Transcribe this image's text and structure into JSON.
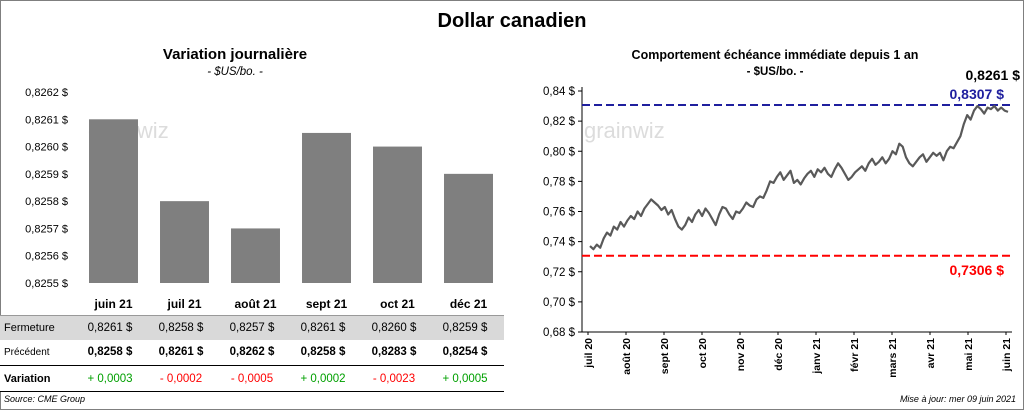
{
  "title": "Dollar canadien",
  "left_chart": {
    "title": "Variation  journalière",
    "subtitle": "- $US/bo. -"
  },
  "right_chart": {
    "title": "Comportement échéance immédiate depuis 1 an",
    "subtitle": "- $US/bo. -",
    "last_value_label": "0,8261 $",
    "upper_line_label": "0,8307 $",
    "lower_line_label": "0,7306 $"
  },
  "table": {
    "row_labels": [
      "Fermeture",
      "Précédent",
      "Variation"
    ],
    "fermeture": [
      "0,8261  $",
      "0,8258  $",
      "0,8257  $",
      "0,8261  $",
      "0,8260  $",
      "0,8259  $"
    ],
    "precedent": [
      "0,8258  $",
      "0,8261  $",
      "0,8262  $",
      "0,8258  $",
      "0,8283  $",
      "0,8254  $"
    ],
    "variation": [
      "+ 0,0003",
      "- 0,0002",
      "- 0,0005",
      "+ 0,0002",
      "- 0,0023",
      "+ 0,0005"
    ],
    "variation_signs": [
      "pos",
      "neg",
      "neg",
      "pos",
      "neg",
      "pos"
    ]
  },
  "footer": {
    "source": "Source: CME Group",
    "updated": "Mise à jour: mer 09 juin 2021"
  },
  "watermark": "grainwiz",
  "colors": {
    "bar": "#7f7f7f",
    "line": "#595959",
    "upper_line": "#1f1f9e",
    "lower_line": "#ff0000",
    "positive": "#00a000",
    "negative": "#ff0000",
    "table_stripe": "#d9d9d9"
  },
  "chart_data": [
    {
      "type": "bar",
      "title": "Variation  journalière",
      "subtitle": "- $US/bo. -",
      "categories": [
        "juin 21",
        "juil 21",
        "août 21",
        "sept 21",
        "oct 21",
        "déc 21"
      ],
      "values": [
        0.8261,
        0.8258,
        0.8257,
        0.82605,
        0.826,
        0.8259
      ],
      "ylim": [
        0.8255,
        0.8262
      ],
      "yticks": [
        "0,8255 $",
        "0,8256 $",
        "0,8257 $",
        "0,8258 $",
        "0,8259 $",
        "0,8260 $",
        "0,8261 $",
        "0,8262 $"
      ],
      "grid": false
    },
    {
      "type": "line",
      "title": "Comportement échéance immédiate depuis 1 an",
      "subtitle": "- $US/bo. -",
      "x_labels": [
        "juil 20",
        "août 20",
        "sept 20",
        "oct 20",
        "nov 20",
        "déc 20",
        "janv 21",
        "févr 21",
        "mars 21",
        "avr 21",
        "mai 21",
        "juin 21"
      ],
      "ylim": [
        0.68,
        0.84
      ],
      "yticks": [
        "0,68 $",
        "0,70 $",
        "0,72 $",
        "0,74 $",
        "0,76 $",
        "0,78 $",
        "0,80 $",
        "0,82 $",
        "0,84 $"
      ],
      "series": [
        {
          "values": [
            0.737,
            0.735,
            0.738,
            0.736,
            0.742,
            0.746,
            0.744,
            0.75,
            0.748,
            0.753,
            0.75,
            0.754,
            0.757,
            0.755,
            0.76,
            0.757,
            0.762,
            0.765,
            0.768,
            0.766,
            0.764,
            0.761,
            0.763,
            0.758,
            0.761,
            0.755,
            0.75,
            0.748,
            0.751,
            0.756,
            0.753,
            0.758,
            0.761,
            0.757,
            0.762,
            0.759,
            0.755,
            0.751,
            0.758,
            0.763,
            0.762,
            0.758,
            0.755,
            0.76,
            0.759,
            0.762,
            0.766,
            0.764,
            0.763,
            0.768,
            0.77,
            0.769,
            0.774,
            0.78,
            0.779,
            0.783,
            0.786,
            0.781,
            0.784,
            0.787,
            0.779,
            0.781,
            0.778,
            0.782,
            0.785,
            0.787,
            0.783,
            0.788,
            0.786,
            0.789,
            0.785,
            0.783,
            0.788,
            0.792,
            0.789,
            0.785,
            0.781,
            0.783,
            0.786,
            0.788,
            0.79,
            0.787,
            0.792,
            0.795,
            0.791,
            0.793,
            0.796,
            0.792,
            0.795,
            0.8,
            0.798,
            0.805,
            0.803,
            0.796,
            0.792,
            0.79,
            0.793,
            0.796,
            0.798,
            0.793,
            0.796,
            0.799,
            0.797,
            0.799,
            0.794,
            0.8,
            0.803,
            0.802,
            0.806,
            0.81,
            0.818,
            0.824,
            0.821,
            0.827,
            0.83,
            0.828,
            0.825,
            0.829,
            0.828,
            0.83,
            0.827,
            0.829,
            0.827,
            0.8261
          ]
        }
      ],
      "reference_lines": [
        {
          "value": 0.8307,
          "label": "0,8307 $"
        },
        {
          "value": 0.7306,
          "label": "0,7306 $"
        }
      ],
      "last_value_label": "0,8261 $",
      "grid": false
    }
  ]
}
